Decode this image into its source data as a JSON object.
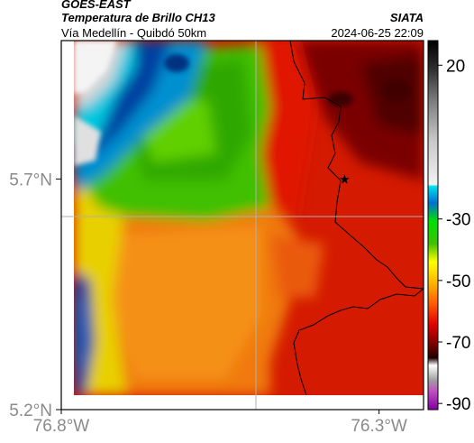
{
  "header": {
    "satellite": "GOES-EAST",
    "product": "Temperatura de Brillo CH13",
    "region": "Vía Medellín - Quibdó 50km",
    "org": "SIATA",
    "datetime": "2024-06-25 22:09"
  },
  "map": {
    "lon_range": [
      -76.8,
      -76.23
    ],
    "lat_range": [
      5.2,
      6.0
    ],
    "lon_ticks": [
      {
        "value": -76.8,
        "label": "76.8°W"
      },
      {
        "value": -76.3,
        "label": "76.3°W"
      }
    ],
    "lat_ticks": [
      {
        "value": 5.7,
        "label": "5.7°N"
      },
      {
        "value": 5.2,
        "label": "5.2°N"
      }
    ],
    "gridlines": true,
    "marker_icon": "star-icon",
    "marker": {
      "lon": -76.35,
      "lat": 5.7
    }
  },
  "colorbar": {
    "range": [
      -92,
      28
    ],
    "ticks": [
      {
        "value": 20,
        "label": "20"
      },
      {
        "value": -30,
        "label": "-30"
      },
      {
        "value": -50,
        "label": "-50"
      },
      {
        "value": -70,
        "label": "-70"
      },
      {
        "value": -90,
        "label": "-90"
      }
    ]
  },
  "colors": {
    "warm": "#cc1a00",
    "mid": "#f07a0a",
    "cool": "#00b400",
    "cold": "#003fa0",
    "coldest": "#e8e8e8"
  }
}
